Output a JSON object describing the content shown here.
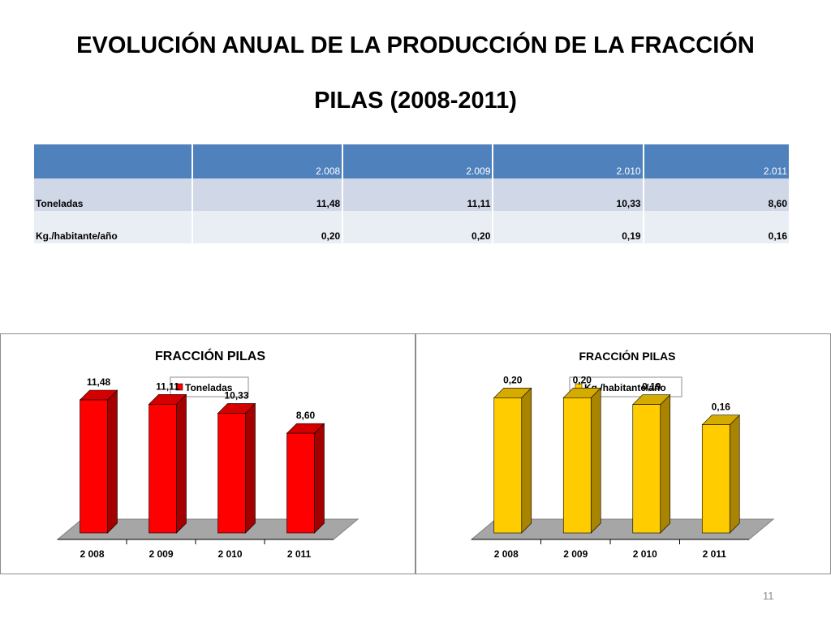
{
  "title": {
    "line1": "EVOLUCIÓN ANUAL DE LA PRODUCCIÓN DE LA FRACCIÓN",
    "line2": "PILAS (2008-2011)"
  },
  "table": {
    "headers": [
      "",
      "2.008",
      "2.009",
      "2.010",
      "2.011"
    ],
    "rows": [
      {
        "label": "Toneladas",
        "values": [
          "11,48",
          "11,11",
          "10,33",
          "8,60"
        ]
      },
      {
        "label": "Kg./habitante/año",
        "values": [
          "0,20",
          "0,20",
          "0,19",
          "0,16"
        ]
      }
    ]
  },
  "chart_data": [
    {
      "type": "bar",
      "title": "FRACCIÓN PILAS",
      "categories": [
        "2 008",
        "2 009",
        "2 010",
        "2 011"
      ],
      "series": [
        {
          "name": "Toneladas",
          "values": [
            11.48,
            11.11,
            10.33,
            8.6
          ]
        }
      ],
      "data_labels": [
        "11,48",
        "11,11",
        "10,33",
        "8,60"
      ],
      "legend": "top",
      "ylim": [
        0,
        14
      ],
      "color": "#ff0000",
      "side_color": "#a50000",
      "top_color": "#d40000"
    },
    {
      "type": "bar",
      "title": "FRACCIÓN PILAS",
      "categories": [
        "2 008",
        "2 009",
        "2 010",
        "2 011"
      ],
      "series": [
        {
          "name": "Kg./habitante/año",
          "values": [
            0.2,
            0.2,
            0.19,
            0.16
          ]
        }
      ],
      "data_labels": [
        "0,20",
        "0,20",
        "0,19",
        "0,16"
      ],
      "legend": "top",
      "ylim": [
        0,
        0.24
      ],
      "color": "#ffcc00",
      "side_color": "#a88400",
      "top_color": "#d6ab00"
    }
  ],
  "page_number": "11"
}
